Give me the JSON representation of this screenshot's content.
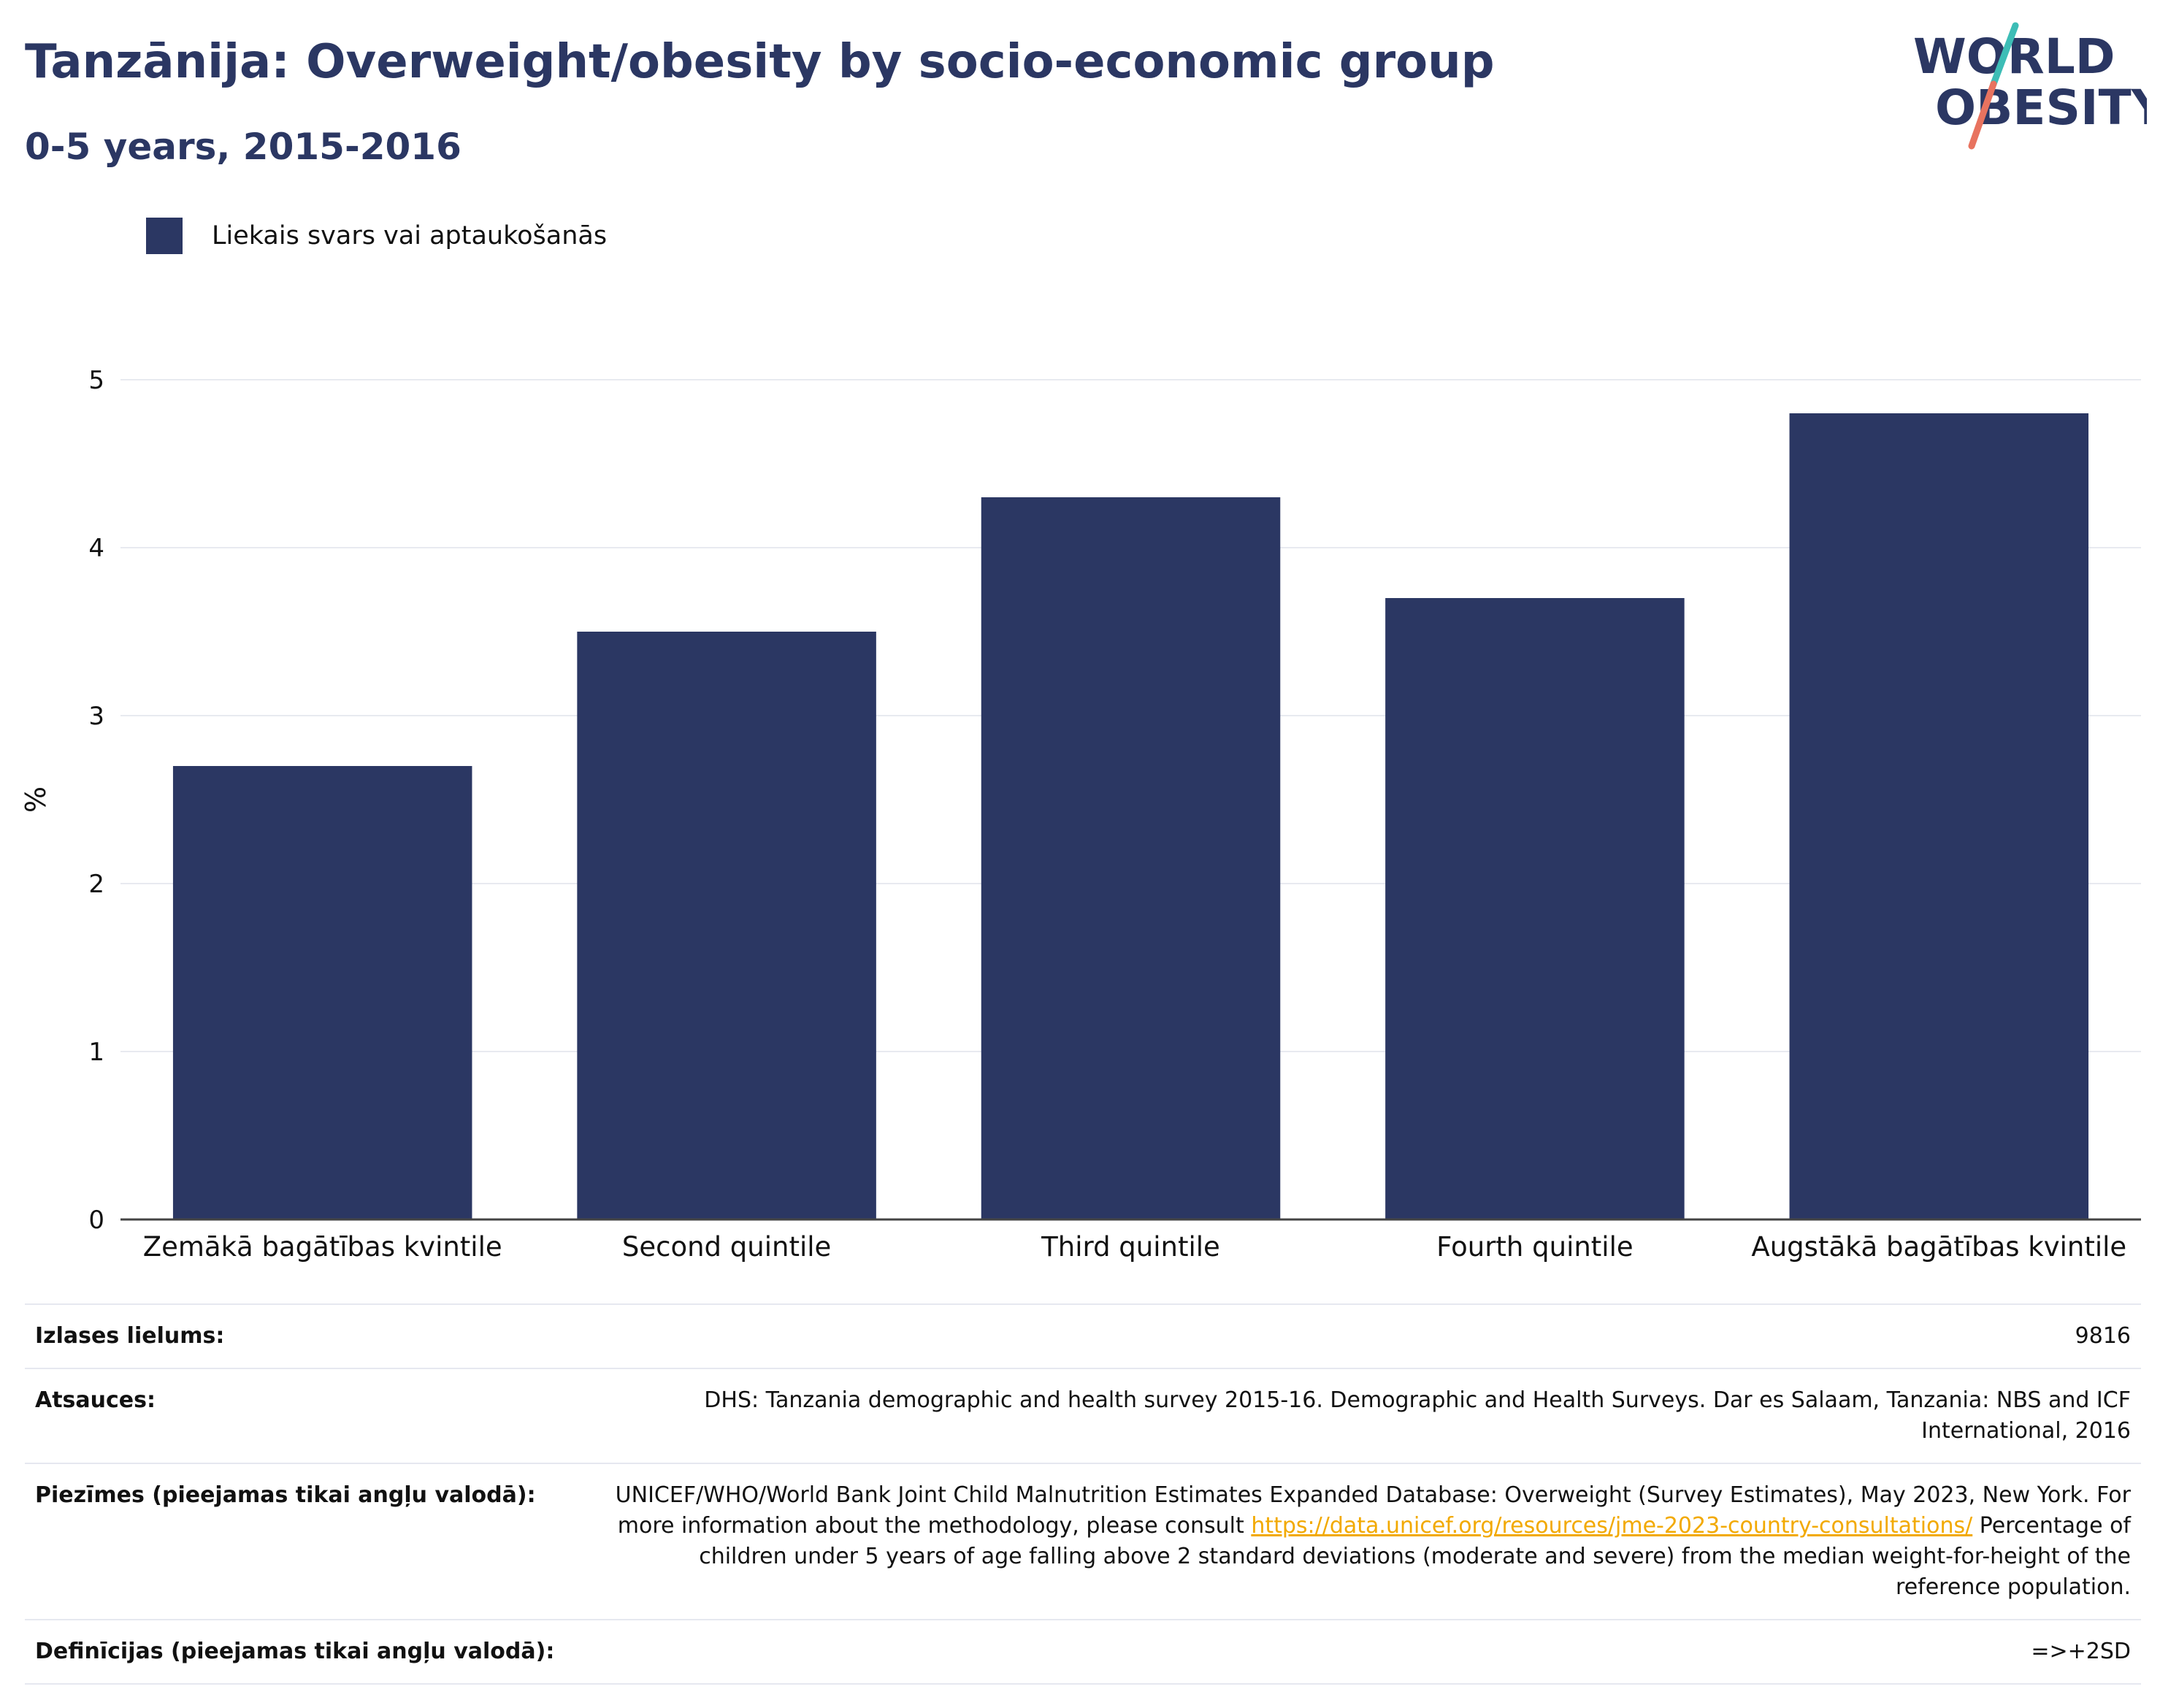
{
  "header": {
    "title": "Tanzānija: Overweight/obesity by socio-economic group",
    "subtitle": "0-5 years, 2015-2016",
    "logo_line1": "WORLD",
    "logo_line2": "OBESITY"
  },
  "legend": {
    "label": "Liekais svars vai aptaukošanās",
    "color": "#2b3763"
  },
  "chart_data": {
    "type": "bar",
    "categories": [
      "Zemākā bagātības kvintile",
      "Second quintile",
      "Third quintile",
      "Fourth quintile",
      "Augstākā bagātības kvintile"
    ],
    "series": [
      {
        "name": "Liekais svars vai aptaukošanās",
        "values": [
          2.7,
          3.5,
          4.3,
          3.7,
          4.8
        ],
        "color": "#2b3763"
      }
    ],
    "ylabel": "%",
    "xlabel": "",
    "ylim": [
      0,
      5
    ],
    "yticks": [
      0,
      1,
      2,
      3,
      4,
      5
    ],
    "grid": true,
    "legend_position": "top-left"
  },
  "info": {
    "sample_size_label": "Izlases lielums:",
    "sample_size_value": "9816",
    "references_label": "Atsauces:",
    "references_value": "DHS: Tanzania demographic and health survey 2015-16. Demographic and Health Surveys. Dar es Salaam, Tanzania: NBS and ICF International, 2016",
    "notes_label": "Piezīmes (pieejamas tikai angļu valodā):",
    "notes_before_link": "UNICEF/WHO/World Bank Joint Child Malnutrition Estimates Expanded Database: Overweight (Survey Estimates), May 2023, New York. For more information about the methodology, please consult ",
    "notes_link": "https://data.unicef.org/resources/jme-2023-country-consultations/",
    "notes_after_link": " Percentage of children under 5 years of age falling above 2 standard deviations (moderate and severe) from the median weight-for-height of the reference population.",
    "definitions_label": "Definīcijas (pieejamas tikai angļu valodā):",
    "definitions_value": "=>+2SD"
  },
  "colors": {
    "brand": "#2b3763",
    "logo_teal": "#3dbdb6",
    "logo_coral": "#e8735f",
    "link": "#f2a900"
  }
}
